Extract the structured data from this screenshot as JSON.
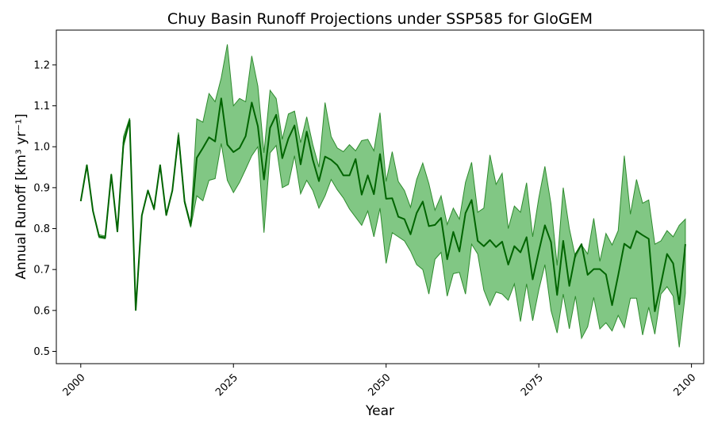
{
  "chart_data": {
    "type": "line",
    "title": "Chuy Basin Runoff Projections under SSP585 for GloGEM",
    "xlabel": "Year",
    "ylabel": "Annual Runoff [km³ yr⁻¹]",
    "xlim": [
      1996,
      2102
    ],
    "ylim": [
      0.47,
      1.285
    ],
    "x_ticks": [
      2000,
      2025,
      2050,
      2075,
      2100
    ],
    "x_tick_labels": [
      "2000",
      "2025",
      "2050",
      "2075",
      "2100"
    ],
    "y_ticks": [
      0.5,
      0.6,
      0.7,
      0.8,
      0.9,
      1.0,
      1.1,
      1.2
    ],
    "y_tick_labels": [
      "0.5",
      "0.6",
      "0.7",
      "0.8",
      "0.9",
      "1.0",
      "1.1",
      "1.2"
    ],
    "grid": false,
    "legend": "none",
    "colors": {
      "line": "#006400",
      "band_fill": "#4caf50",
      "band_stroke": "#2e8b2e"
    },
    "x": [
      2000,
      2001,
      2002,
      2003,
      2004,
      2005,
      2006,
      2007,
      2008,
      2009,
      2010,
      2011,
      2012,
      2013,
      2014,
      2015,
      2016,
      2017,
      2018,
      2019,
      2020,
      2021,
      2022,
      2023,
      2024,
      2025,
      2026,
      2027,
      2028,
      2029,
      2030,
      2031,
      2032,
      2033,
      2034,
      2035,
      2036,
      2037,
      2038,
      2039,
      2040,
      2041,
      2042,
      2043,
      2044,
      2045,
      2046,
      2047,
      2048,
      2049,
      2050,
      2051,
      2052,
      2053,
      2054,
      2055,
      2056,
      2057,
      2058,
      2059,
      2060,
      2061,
      2062,
      2063,
      2064,
      2065,
      2066,
      2067,
      2068,
      2069,
      2070,
      2071,
      2072,
      2073,
      2074,
      2075,
      2076,
      2077,
      2078,
      2079,
      2080,
      2081,
      2082,
      2083,
      2084,
      2085,
      2086,
      2087,
      2088,
      2089,
      2090,
      2091,
      2092,
      2093,
      2094,
      2095,
      2096,
      2097,
      2098,
      2099
    ],
    "mean": [
      0.867,
      0.955,
      0.843,
      0.781,
      0.778,
      0.932,
      0.793,
      1.01,
      1.065,
      0.601,
      0.832,
      0.893,
      0.848,
      0.955,
      0.833,
      0.893,
      1.028,
      0.866,
      0.808,
      0.973,
      0.997,
      1.023,
      1.013,
      1.118,
      1.005,
      0.987,
      0.997,
      1.026,
      1.108,
      1.05,
      0.92,
      1.046,
      1.078,
      0.972,
      1.02,
      1.052,
      0.957,
      1.037,
      0.968,
      0.916,
      0.976,
      0.968,
      0.955,
      0.93,
      0.93,
      0.97,
      0.883,
      0.93,
      0.884,
      0.982,
      0.873,
      0.874,
      0.829,
      0.823,
      0.786,
      0.838,
      0.866,
      0.806,
      0.809,
      0.826,
      0.725,
      0.792,
      0.744,
      0.838,
      0.87,
      0.77,
      0.757,
      0.772,
      0.755,
      0.768,
      0.712,
      0.757,
      0.742,
      0.779,
      0.676,
      0.744,
      0.808,
      0.767,
      0.638,
      0.77,
      0.66,
      0.737,
      0.762,
      0.687,
      0.701,
      0.701,
      0.688,
      0.613,
      0.686,
      0.763,
      0.752,
      0.794,
      0.784,
      0.775,
      0.598,
      0.665,
      0.738,
      0.715,
      0.615,
      0.762
    ],
    "upper": [
      0.867,
      0.955,
      0.843,
      0.785,
      0.782,
      0.932,
      0.793,
      1.025,
      1.07,
      0.601,
      0.832,
      0.893,
      0.85,
      0.955,
      0.833,
      0.893,
      1.035,
      0.87,
      0.812,
      1.068,
      1.06,
      1.13,
      1.11,
      1.168,
      1.25,
      1.1,
      1.118,
      1.11,
      1.222,
      1.148,
      0.985,
      1.138,
      1.118,
      1.018,
      1.08,
      1.087,
      1.01,
      1.073,
      1.005,
      0.95,
      1.108,
      1.025,
      0.997,
      0.988,
      1.005,
      0.99,
      1.015,
      1.018,
      0.99,
      1.083,
      0.915,
      0.988,
      0.915,
      0.893,
      0.852,
      0.92,
      0.96,
      0.91,
      0.845,
      0.88,
      0.81,
      0.85,
      0.823,
      0.913,
      0.962,
      0.84,
      0.85,
      0.98,
      0.908,
      0.935,
      0.8,
      0.855,
      0.84,
      0.912,
      0.78,
      0.875,
      0.952,
      0.86,
      0.71,
      0.9,
      0.8,
      0.73,
      0.76,
      0.738,
      0.825,
      0.72,
      0.788,
      0.76,
      0.795,
      0.978,
      0.835,
      0.92,
      0.862,
      0.87,
      0.762,
      0.77,
      0.795,
      0.78,
      0.808,
      0.823
    ],
    "lower": [
      0.867,
      0.955,
      0.843,
      0.778,
      0.775,
      0.932,
      0.793,
      1.0,
      1.06,
      0.601,
      0.832,
      0.893,
      0.845,
      0.955,
      0.833,
      0.893,
      1.02,
      0.862,
      0.803,
      0.88,
      0.868,
      0.918,
      0.922,
      1.008,
      0.918,
      0.888,
      0.913,
      0.945,
      0.978,
      1.0,
      0.79,
      0.985,
      1.003,
      0.9,
      0.908,
      0.978,
      0.885,
      0.918,
      0.893,
      0.85,
      0.88,
      0.92,
      0.895,
      0.875,
      0.848,
      0.828,
      0.808,
      0.843,
      0.78,
      0.85,
      0.715,
      0.79,
      0.78,
      0.77,
      0.745,
      0.712,
      0.7,
      0.64,
      0.725,
      0.742,
      0.635,
      0.69,
      0.693,
      0.64,
      0.762,
      0.738,
      0.65,
      0.612,
      0.645,
      0.64,
      0.625,
      0.665,
      0.573,
      0.665,
      0.575,
      0.65,
      0.712,
      0.6,
      0.545,
      0.64,
      0.555,
      0.635,
      0.532,
      0.56,
      0.632,
      0.555,
      0.57,
      0.55,
      0.588,
      0.558,
      0.63,
      0.63,
      0.54,
      0.608,
      0.542,
      0.64,
      0.658,
      0.635,
      0.51,
      0.642
    ]
  }
}
